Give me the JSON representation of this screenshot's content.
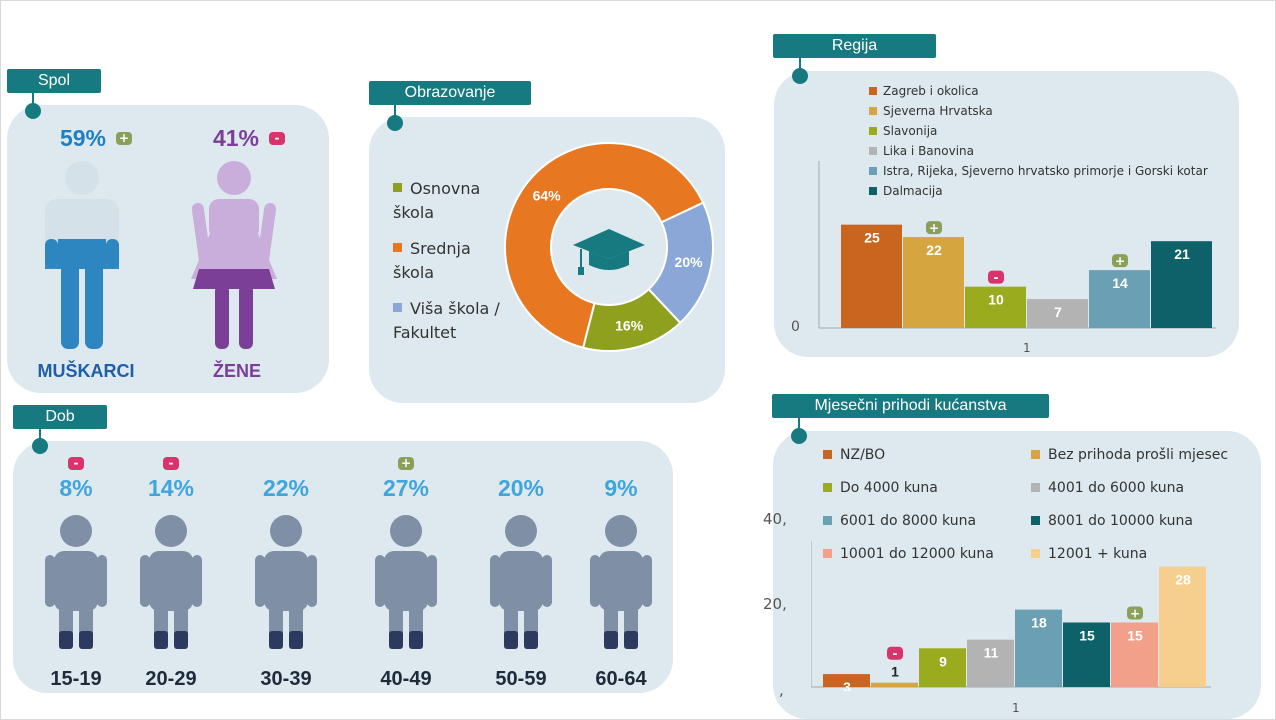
{
  "spol": {
    "title": "Spol",
    "men": {
      "pct": "59%",
      "label": "MUŠKARCI",
      "badge": "+"
    },
    "women": {
      "pct": "41%",
      "label": "ŽENE",
      "badge": "-"
    }
  },
  "obrazovanje": {
    "title": "Obrazovanje",
    "legend": [
      {
        "label": "Osnovna škola",
        "color": "#8fa01f"
      },
      {
        "label": "Srednja škola",
        "color": "#e87722"
      },
      {
        "label": "Viša škola / Fakultet",
        "color": "#8aa7d8"
      }
    ],
    "chart_data": {
      "type": "pie",
      "donut": true,
      "slices": [
        {
          "label": "Srednja škola",
          "value": 64,
          "text": "64%",
          "color": "#e87722"
        },
        {
          "label": "Viša škola / Fakultet",
          "value": 20,
          "text": "20%",
          "color": "#8aa7d8"
        },
        {
          "label": "Osnovna škola",
          "value": 16,
          "text": "16%",
          "color": "#8fa01f"
        }
      ]
    }
  },
  "regija": {
    "title": "Regija",
    "chart_data": {
      "type": "bar",
      "categories": [
        "1"
      ],
      "ylim": [
        0,
        30
      ],
      "y_tick": "0",
      "series": [
        {
          "name": "Zagreb i okolica",
          "value": 25,
          "color": "#c9651f",
          "badge": ""
        },
        {
          "name": "Sjeverna Hrvatska",
          "value": 22,
          "color": "#d5a640",
          "badge": "+"
        },
        {
          "name": "Slavonija",
          "value": 10,
          "color": "#9aab1d",
          "badge": "-"
        },
        {
          "name": "Lika i Banovina",
          "value": 7,
          "color": "#b3b3b3",
          "badge": ""
        },
        {
          "name": "Istra, Rijeka, Sjeverno hrvatsko primorje i Gorski kotar",
          "value": 14,
          "color": "#6b9fb3",
          "badge": "+"
        },
        {
          "name": "Dalmacija",
          "value": 21,
          "color": "#0f6169",
          "badge": ""
        }
      ]
    }
  },
  "prihodi": {
    "title": "Mjesečni prihodi kućanstva",
    "chart_data": {
      "type": "bar",
      "categories": [
        "1"
      ],
      "ylim": [
        0,
        40
      ],
      "y_ticks": [
        "40,",
        "20,",
        ","
      ],
      "series": [
        {
          "name": "NZ/BO",
          "value": 3,
          "color": "#c9651f",
          "badge": ""
        },
        {
          "name": "Bez prihoda prošli mjesec",
          "value": 1,
          "color": "#d5a640",
          "badge": "-"
        },
        {
          "name": "Do 4000 kuna",
          "value": 9,
          "color": "#9aab1d",
          "badge": ""
        },
        {
          "name": "4001 do 6000 kuna",
          "value": 11,
          "color": "#b3b3b3",
          "badge": ""
        },
        {
          "name": "6001 do 8000 kuna",
          "value": 18,
          "color": "#6b9fb3",
          "badge": ""
        },
        {
          "name": "8001 do 10000 kuna",
          "value": 15,
          "color": "#0f6169",
          "badge": ""
        },
        {
          "name": "10001 do 12000 kuna",
          "value": 15,
          "color": "#f2a08a",
          "badge": "+"
        },
        {
          "name": "12001 + kuna",
          "value": 28,
          "color": "#f6cf8e",
          "badge": ""
        }
      ]
    }
  },
  "dob": {
    "title": "Dob",
    "groups": [
      {
        "label": "15-19",
        "pct": "8%",
        "badge": "-"
      },
      {
        "label": "20-29",
        "pct": "14%",
        "badge": "-"
      },
      {
        "label": "30-39",
        "pct": "22%",
        "badge": ""
      },
      {
        "label": "40-49",
        "pct": "27%",
        "badge": "+"
      },
      {
        "label": "50-59",
        "pct": "20%",
        "badge": ""
      },
      {
        "label": "60-64",
        "pct": "9%",
        "badge": ""
      }
    ]
  }
}
